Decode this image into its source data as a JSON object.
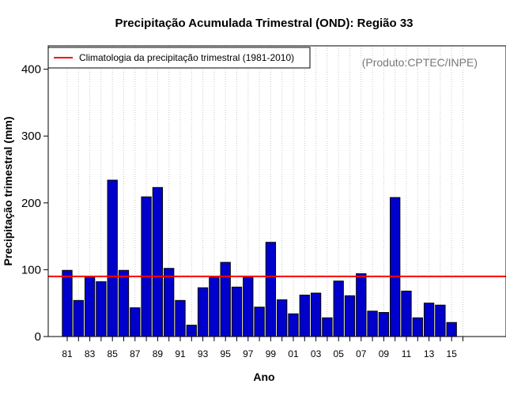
{
  "chart_data": {
    "type": "bar",
    "title": "Precipitação Acumulada Trimestral (OND): Região 33",
    "xlabel": "Ano",
    "ylabel": "Precipitação trimestral (mm)",
    "ylim": [
      0,
      435
    ],
    "yticks": [
      0,
      100,
      200,
      300,
      400
    ],
    "credit": "(Produto:CPTEC/INPE)",
    "categories": [
      "81",
      "82",
      "83",
      "84",
      "85",
      "86",
      "87",
      "88",
      "89",
      "90",
      "91",
      "92",
      "93",
      "94",
      "95",
      "96",
      "97",
      "98",
      "99",
      "00",
      "01",
      "02",
      "03",
      "04",
      "05",
      "06",
      "07",
      "08",
      "09",
      "10",
      "11",
      "12",
      "13",
      "14",
      "15",
      "16"
    ],
    "xtick_labels": [
      "81",
      "83",
      "85",
      "87",
      "89",
      "91",
      "93",
      "95",
      "97",
      "99",
      "01",
      "03",
      "05",
      "07",
      "09",
      "11",
      "13",
      "15"
    ],
    "series": [
      {
        "name": "Precipitação trimestral",
        "color": "#0000cc",
        "values": [
          99,
          54,
          89,
          82,
          234,
          99,
          43,
          209,
          223,
          102,
          54,
          17,
          73,
          90,
          111,
          74,
          89,
          44,
          141,
          55,
          34,
          62,
          65,
          28,
          83,
          61,
          94,
          38,
          36,
          208,
          68,
          28,
          50,
          47,
          21,
          0
        ]
      }
    ],
    "reference_line": {
      "label": "Climatologia da precipitação trimestral (1981-2010)",
      "value": 90,
      "color": "#ff0000"
    },
    "legend_position": "top-left",
    "grid": "vertical dotted"
  }
}
